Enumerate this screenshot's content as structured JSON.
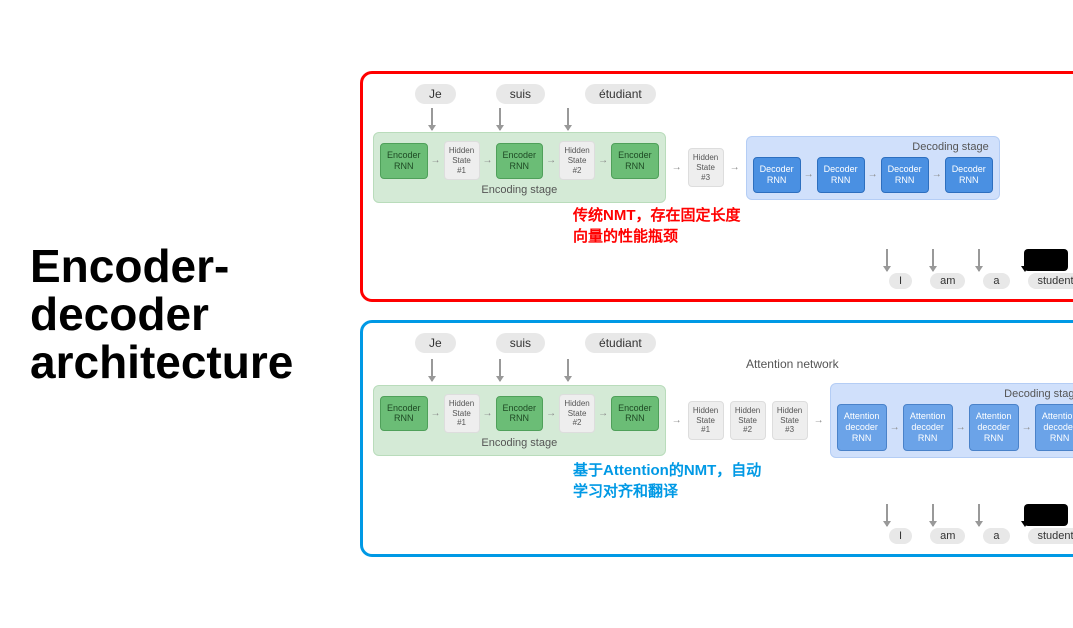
{
  "title_line1": "Encoder-",
  "title_line2": "decoder",
  "title_line3": "architecture",
  "colors": {
    "red_border": "#ff0000",
    "blue_border": "#0099e5",
    "encoder_bg": "#6bbd76",
    "encoder_stage_bg": "#d4ead6",
    "decoder_bg": "#4a90e2",
    "attention_bg": "#6ba3e8",
    "decoder_stage_bg": "#d0e0fb",
    "hidden_bg": "#eeeeee",
    "pill_bg": "#e8e8e8",
    "arrow": "#999999",
    "annotation_red": "#ff0000",
    "annotation_blue": "#0099e5"
  },
  "panel1": {
    "type": "flowchart",
    "inputs": [
      "Je",
      "suis",
      "étudiant"
    ],
    "encoder_stage_label": "Encoding stage",
    "decoder_stage_label": "Decoding stage",
    "encoders": [
      "Encoder\nRNN",
      "Encoder\nRNN",
      "Encoder\nRNN"
    ],
    "hidden_states_enc": [
      "Hidden\nState\n#1",
      "Hidden\nState\n#2"
    ],
    "bridge_hidden": "Hidden\nState\n#3",
    "decoders": [
      "Decoder\nRNN",
      "Decoder\nRNN",
      "Decoder\nRNN",
      "Decoder\nRNN"
    ],
    "outputs": [
      "I",
      "am",
      "a",
      "student"
    ],
    "annotation_l1": "传统NMT，存在固定长度",
    "annotation_l2": "向量的性能瓶颈"
  },
  "panel2": {
    "type": "flowchart",
    "inputs": [
      "Je",
      "suis",
      "étudiant"
    ],
    "attention_label": "Attention network",
    "encoder_stage_label": "Encoding stage",
    "decoder_stage_label": "Decoding stage",
    "encoders": [
      "Encoder\nRNN",
      "Encoder\nRNN",
      "Encoder\nRNN"
    ],
    "hidden_states_enc": [
      "Hidden\nState\n#1",
      "Hidden\nState\n#2"
    ],
    "bridge_hidden": [
      "Hidden\nState\n#1",
      "Hidden\nState\n#2",
      "Hidden\nState\n#3"
    ],
    "decoders": [
      "Attention\ndecoder\nRNN",
      "Attention\ndecoder\nRNN",
      "Attention\ndecoder\nRNN",
      "Attention\ndecoder\nRNN"
    ],
    "outputs": [
      "I",
      "am",
      "a",
      "student"
    ],
    "annotation_l1": "基于Attention的NMT，自动",
    "annotation_l2": "学习对齐和翻译"
  }
}
